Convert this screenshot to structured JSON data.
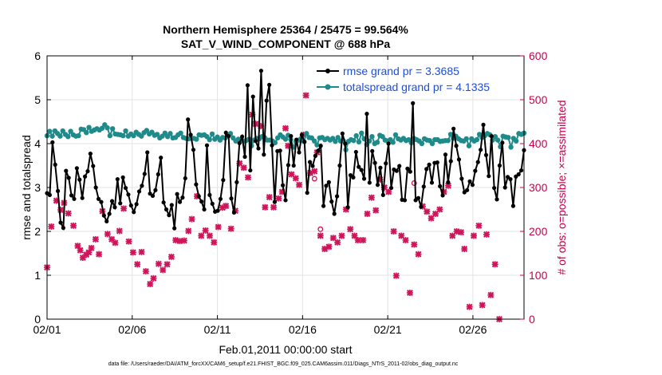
{
  "chart_data": {
    "type": "line",
    "title": "Northern Hemisphere 25364 / 25475 = 99.564%",
    "subtitle": "SAT_V_WIND_COMPONENT @ 688 hPa",
    "xlabel": "Feb.01,2011 00:00:00 start",
    "ylabel": "rmse and totalspread",
    "y2label": "# of obs: o=possible; ×=assimilated",
    "footnote": "data file: /Users/raeder/DAI/ATM_forcXX/CAM6_setup/f.e21.FHIST_BGC.f09_025.CAM6assim.011/Diags_NTrS_2011-02/obs_diag_output.nc",
    "xlim": [
      0,
      28
    ],
    "ylim": [
      0,
      6
    ],
    "y2lim": [
      0,
      600
    ],
    "xticks": [
      0,
      5,
      10,
      15,
      20,
      25
    ],
    "xtick_labels": [
      "02/01",
      "02/06",
      "02/11",
      "02/16",
      "02/21",
      "02/26"
    ],
    "yticks": [
      "0",
      "1",
      "2",
      "3",
      "4",
      "5",
      "6"
    ],
    "y2ticks": [
      "0",
      "100",
      "200",
      "300",
      "400",
      "500",
      "600"
    ],
    "legend_position": "top-right",
    "series": [
      {
        "name": "rmse grand pr = 3.3685",
        "axis": "left",
        "color": "#000000",
        "marker": "circle",
        "values": [
          2.87,
          2.83,
          4.03,
          3.52,
          2.92,
          2.2,
          2.08,
          3.38,
          3.22,
          2.82,
          2.74,
          3.44,
          3.18,
          2.76,
          3.25,
          3.37,
          3.77,
          3.49,
          3.0,
          2.74,
          2.67,
          2.36,
          2.23,
          2.4,
          2.69,
          2.55,
          3.19,
          2.64,
          3.23,
          2.99,
          2.84,
          2.59,
          2.44,
          2.62,
          2.91,
          3.04,
          3.31,
          3.8,
          2.86,
          2.81,
          2.94,
          3.3,
          3.68,
          2.66,
          2.5,
          2.37,
          2.6,
          2.07,
          2.85,
          2.67,
          2.77,
          3.21,
          4.55,
          4.2,
          3.86,
          3.07,
          2.8,
          2.68,
          2.5,
          3.96,
          2.83,
          2.63,
          2.45,
          2.47,
          2.74,
          3.17,
          4.25,
          4.17,
          2.75,
          2.43,
          3.12,
          4.01,
          4.16,
          3.7,
          5.33,
          3.39,
          5.07,
          4.06,
          3.89,
          5.66,
          3.75,
          4.98,
          5.34,
          3.96,
          2.67,
          3.83,
          3.84,
          3.05,
          2.71,
          3.51,
          4.17,
          3.5,
          4.09,
          3.8,
          4.2,
          4.04,
          2.88,
          3.58,
          3.49,
          3.72,
          3.84,
          3.95,
          2.58,
          3.04,
          3.12,
          2.68,
          2.4,
          2.8,
          3.5,
          4.23,
          4.0,
          2.55,
          3.28,
          3.23,
          3.81,
          3.47,
          3.4,
          3.2,
          4.68,
          3.11,
          3.83,
          3.56,
          3.06,
          3.45,
          2.83,
          3.55,
          4.0,
          2.99,
          3.41,
          3.38,
          3.49,
          2.72,
          2.71,
          3.43,
          3.36,
          4.92,
          2.71,
          2.76,
          2.56,
          3.02,
          3.42,
          3.52,
          3.11,
          3.56,
          3.57,
          3.03,
          2.82,
          3.75,
          3.12,
          3.6,
          4.34,
          3.95,
          3.64,
          3.2,
          2.89,
          2.94,
          3.14,
          3.06,
          3.38,
          3.58,
          3.86,
          4.43,
          3.74,
          3.26,
          4.17,
          2.99,
          2.73,
          3.5,
          4.02,
          3.0,
          3.24,
          3.19,
          2.58,
          3.25,
          3.3,
          3.39,
          3.85
        ]
      },
      {
        "name": "totalspread grand pr = 4.1335",
        "axis": "left",
        "color": "#1f8a8a",
        "marker": "circle",
        "values": [
          4.18,
          4.28,
          4.17,
          4.29,
          4.23,
          4.17,
          4.29,
          4.21,
          4.16,
          4.28,
          4.2,
          4.17,
          4.18,
          4.33,
          4.32,
          4.25,
          4.37,
          4.28,
          4.31,
          4.34,
          4.31,
          4.35,
          4.43,
          4.36,
          4.18,
          4.34,
          4.22,
          4.21,
          4.2,
          4.18,
          4.29,
          4.17,
          4.22,
          4.18,
          4.26,
          4.21,
          4.17,
          4.25,
          4.3,
          4.22,
          4.26,
          4.19,
          4.21,
          4.13,
          4.17,
          4.24,
          4.16,
          4.23,
          4.13,
          4.14,
          4.2,
          4.24,
          4.14,
          4.12,
          4.11,
          4.12,
          4.12,
          4.1,
          4.2,
          4.19,
          4.2,
          4.16,
          4.09,
          4.22,
          4.1,
          4.15,
          4.08,
          4.14,
          4.13,
          4.17,
          4.23,
          4.13,
          4.06,
          4.1,
          4.09,
          4.06,
          4.07,
          4.1,
          3.95,
          4.08,
          4.12,
          4.11,
          4.16,
          4.14,
          4.08,
          4.08,
          4.06,
          4.02,
          4.13,
          4.2,
          4.15,
          4.1,
          4.19,
          4.09,
          3.92,
          4.04,
          4.08,
          4.12,
          4.05,
          4.23,
          4.14,
          4.13,
          4.06,
          3.97,
          4.13,
          4.14,
          4.09,
          4.12,
          4.08,
          4.12,
          4.05,
          4.14,
          4.06,
          4.07,
          3.86,
          4.05,
          4.09,
          4.07,
          4.18,
          4.04,
          4.24,
          4.11,
          3.98,
          4.06,
          4.16,
          4.0,
          4.03,
          4.19,
          4.16,
          4.08,
          4.06,
          4.09,
          4.03,
          4.2,
          4.11,
          4.08,
          4.12,
          4.07,
          4.09,
          4.02,
          4.12,
          4.09,
          4.06,
          4.0,
          4.11,
          4.08,
          4.07,
          4.0,
          4.09,
          4.09,
          4.05,
          4.06,
          4.07,
          4.07,
          4.21,
          4.12,
          4.17,
          4.11,
          4.07,
          4.06,
          4.11,
          3.95,
          4.11,
          4.06,
          4.09,
          4.21,
          4.14,
          4.18,
          4.23,
          4.2,
          4.08,
          4.16,
          4.08,
          3.93,
          4.17,
          4.15,
          4.14,
          3.92,
          4.12,
          4.06,
          4.23,
          4.21,
          4.24
        ]
      },
      {
        "name": "# obs assimilated",
        "axis": "right",
        "color": "#d0145a",
        "marker": "x",
        "points": [
          [
            0.0,
            118
          ],
          [
            0.25,
            211
          ],
          [
            0.55,
            270
          ],
          [
            0.8,
            249
          ],
          [
            1.0,
            265
          ],
          [
            1.25,
            241
          ],
          [
            1.55,
            213
          ],
          [
            1.8,
            167
          ],
          [
            1.95,
            157
          ],
          [
            2.1,
            140
          ],
          [
            2.3,
            147
          ],
          [
            2.45,
            152
          ],
          [
            2.6,
            162
          ],
          [
            2.85,
            182
          ],
          [
            3.05,
            148
          ],
          [
            3.25,
            246
          ],
          [
            3.55,
            194
          ],
          [
            3.8,
            182
          ],
          [
            4.0,
            174
          ],
          [
            4.25,
            201
          ],
          [
            4.5,
            252
          ],
          [
            4.8,
            177
          ],
          [
            5.05,
            152
          ],
          [
            5.3,
            125
          ],
          [
            5.55,
            153
          ],
          [
            5.8,
            109
          ],
          [
            6.05,
            80
          ],
          [
            6.25,
            93
          ],
          [
            6.55,
            126
          ],
          [
            6.8,
            112
          ],
          [
            7.05,
            125
          ],
          [
            7.3,
            142
          ],
          [
            7.55,
            180
          ],
          [
            7.8,
            178
          ],
          [
            8.05,
            179
          ],
          [
            8.3,
            201
          ],
          [
            8.5,
            228
          ],
          [
            8.8,
            280
          ],
          [
            9.05,
            190
          ],
          [
            9.3,
            202
          ],
          [
            9.55,
            190
          ],
          [
            9.8,
            175
          ],
          [
            10.05,
            210
          ],
          [
            10.3,
            254
          ],
          [
            10.5,
            258
          ],
          [
            10.8,
            206
          ],
          [
            11.05,
            247
          ],
          [
            11.3,
            355
          ],
          [
            11.55,
            345
          ],
          [
            11.8,
            323
          ],
          [
            12.05,
            466
          ],
          [
            12.25,
            445
          ],
          [
            12.55,
            440
          ],
          [
            12.8,
            255
          ],
          [
            13.05,
            278
          ],
          [
            13.3,
            255
          ],
          [
            13.6,
            275
          ],
          [
            13.8,
            290
          ],
          [
            14.0,
            435
          ],
          [
            14.15,
            395
          ],
          [
            14.35,
            330
          ],
          [
            14.6,
            321
          ],
          [
            14.8,
            306
          ],
          [
            15.05,
            420
          ],
          [
            15.2,
            510
          ],
          [
            15.45,
            333
          ],
          [
            15.7,
            337
          ],
          [
            15.85,
            380
          ],
          [
            16.05,
            190
          ],
          [
            16.3,
            160
          ],
          [
            16.55,
            165
          ],
          [
            16.8,
            185
          ],
          [
            17.05,
            175
          ],
          [
            17.3,
            190
          ],
          [
            17.55,
            250
          ],
          [
            17.8,
            205
          ],
          [
            18.05,
            190
          ],
          [
            18.25,
            180
          ],
          [
            18.55,
            180
          ],
          [
            18.8,
            240
          ],
          [
            19.05,
            277
          ],
          [
            19.3,
            248
          ],
          [
            19.55,
            318
          ],
          [
            19.8,
            300
          ],
          [
            20.05,
            290
          ],
          [
            20.35,
            200
          ],
          [
            20.5,
            99
          ],
          [
            20.8,
            190
          ],
          [
            21.05,
            180
          ],
          [
            21.3,
            60
          ],
          [
            21.55,
            170
          ],
          [
            21.8,
            148
          ],
          [
            22.05,
            257
          ],
          [
            22.3,
            245
          ],
          [
            22.55,
            230
          ],
          [
            22.8,
            240
          ],
          [
            23.05,
            250
          ],
          [
            23.3,
            290
          ],
          [
            23.55,
            304
          ],
          [
            23.8,
            190
          ],
          [
            24.05,
            200
          ],
          [
            24.3,
            198
          ],
          [
            24.5,
            160
          ],
          [
            24.8,
            28
          ],
          [
            25.05,
            190
          ],
          [
            25.35,
            213
          ],
          [
            25.55,
            32
          ],
          [
            25.8,
            193
          ],
          [
            26.05,
            55
          ],
          [
            26.3,
            125
          ],
          [
            26.55,
            0
          ]
        ]
      },
      {
        "name": "# obs possible",
        "axis": "right",
        "color": "#d0145a",
        "marker": "o",
        "points": [
          [
            15.7,
            320
          ],
          [
            16.05,
            205
          ],
          [
            21.55,
            310
          ]
        ]
      }
    ]
  }
}
